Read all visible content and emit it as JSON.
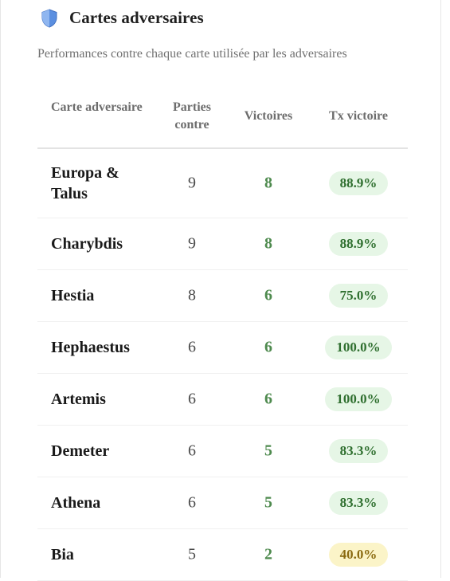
{
  "panel": {
    "title": "Cartes adversaires",
    "icon": "shield-icon",
    "subtitle": "Performances contre chaque carte utilisée par les adversaires"
  },
  "table": {
    "columns": {
      "name": "Carte adversaire",
      "played": "Parties contre",
      "wins": "Victoires",
      "rate": "Tx victoire"
    },
    "rows": [
      {
        "name": "Europa & Talus",
        "played": "9",
        "wins": "8",
        "rate": "88.9%",
        "status": "good"
      },
      {
        "name": "Charybdis",
        "played": "9",
        "wins": "8",
        "rate": "88.9%",
        "status": "good"
      },
      {
        "name": "Hestia",
        "played": "8",
        "wins": "6",
        "rate": "75.0%",
        "status": "good"
      },
      {
        "name": "Hephaestus",
        "played": "6",
        "wins": "6",
        "rate": "100.0%",
        "status": "good"
      },
      {
        "name": "Artemis",
        "played": "6",
        "wins": "6",
        "rate": "100.0%",
        "status": "good"
      },
      {
        "name": "Demeter",
        "played": "6",
        "wins": "5",
        "rate": "83.3%",
        "status": "good"
      },
      {
        "name": "Athena",
        "played": "6",
        "wins": "5",
        "rate": "83.3%",
        "status": "good"
      },
      {
        "name": "Bia",
        "played": "5",
        "wins": "2",
        "rate": "40.0%",
        "status": "mid"
      }
    ]
  },
  "colors": {
    "accent_blue": "#4a7fd6",
    "win_green": "#4e8a4e",
    "good_pill_bg": "#e6f6e6",
    "mid_pill_bg": "#fbf4c8"
  }
}
